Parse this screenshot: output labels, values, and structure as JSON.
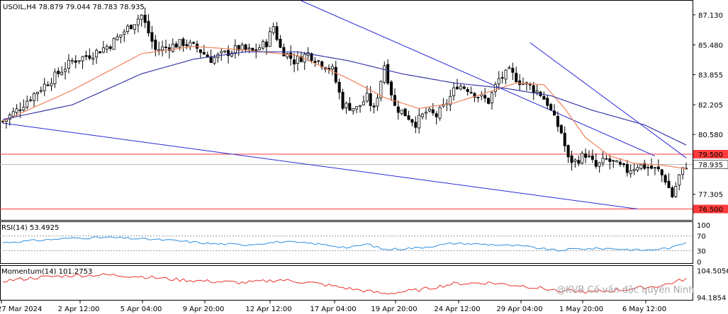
{
  "chart_data": [
    {
      "type": "candlestick",
      "title": "USOIL,H4  78.879 79.044 78.783 78.935",
      "y_ticks": [
        "87.130",
        "85.480",
        "83.855",
        "82.205",
        "80.580",
        "77.305"
      ],
      "ylim": [
        75.9,
        87.9
      ],
      "x_ticks": [
        "27 Mar 2024",
        "2 Apr 12:00",
        "5 Apr 04:00",
        "9 Apr 20:00",
        "12 Apr 12:00",
        "17 Apr 04:00",
        "19 Apr 20:00",
        "24 Apr 12:00",
        "29 Apr 04:00",
        "1 May 20:00",
        "6 May 12:00"
      ],
      "price_levels": [
        {
          "label": "79.500",
          "value": 79.5,
          "color": "#ff3b3b"
        },
        {
          "label": "76.500",
          "value": 76.5,
          "color": "#ff3b3b"
        }
      ],
      "current_price": {
        "label": "78.935",
        "value": 78.935
      },
      "close_points": [
        [
          0,
          81.3
        ],
        [
          4,
          81.9
        ],
        [
          9,
          82.8
        ],
        [
          14,
          83.6
        ],
        [
          20,
          84.6
        ],
        [
          26,
          85.0
        ],
        [
          31,
          85.5
        ],
        [
          36,
          86.4
        ],
        [
          40,
          87.1
        ],
        [
          44,
          85.2
        ],
        [
          48,
          85.4
        ],
        [
          52,
          85.6
        ],
        [
          56,
          85.3
        ],
        [
          60,
          84.7
        ],
        [
          64,
          85.0
        ],
        [
          68,
          85.3
        ],
        [
          72,
          85.1
        ],
        [
          76,
          85.6
        ],
        [
          78,
          86.5
        ],
        [
          80,
          85.3
        ],
        [
          84,
          84.6
        ],
        [
          88,
          85.0
        ],
        [
          91,
          84.6
        ],
        [
          95,
          84.1
        ],
        [
          98,
          82.2
        ],
        [
          102,
          82.0
        ],
        [
          105,
          82.6
        ],
        [
          107,
          81.9
        ],
        [
          110,
          84.4
        ],
        [
          113,
          82.1
        ],
        [
          116,
          81.7
        ],
        [
          119,
          81.2
        ],
        [
          122,
          81.8
        ],
        [
          125,
          81.6
        ],
        [
          128,
          82.3
        ],
        [
          131,
          83.3
        ],
        [
          134,
          83.1
        ],
        [
          137,
          82.7
        ],
        [
          140,
          82.4
        ],
        [
          143,
          83.6
        ],
        [
          146,
          84.0
        ],
        [
          149,
          83.5
        ],
        [
          152,
          83.2
        ],
        [
          155,
          82.8
        ],
        [
          157,
          82.3
        ],
        [
          159,
          81.4
        ],
        [
          161,
          80.7
        ],
        [
          163,
          79.2
        ],
        [
          165,
          79.1
        ],
        [
          168,
          79.5
        ],
        [
          171,
          78.8
        ],
        [
          174,
          79.2
        ],
        [
          177,
          78.9
        ],
        [
          180,
          78.6
        ],
        [
          183,
          78.9
        ],
        [
          186,
          78.8
        ],
        [
          189,
          78.6
        ],
        [
          191,
          78.1
        ],
        [
          193,
          77.2
        ],
        [
          195,
          78.3
        ],
        [
          197,
          78.9
        ]
      ],
      "candle_count": 198,
      "series": [
        {
          "name": "",
          "color": "#f2825a",
          "points": [
            [
              0,
              81.3
            ],
            [
              20,
              83.0
            ],
            [
              40,
              85.0
            ],
            [
              55,
              85.4
            ],
            [
              70,
              85.2
            ],
            [
              85,
              84.9
            ],
            [
              100,
              83.6
            ],
            [
              110,
              82.6
            ],
            [
              120,
              82.0
            ],
            [
              130,
              82.3
            ],
            [
              140,
              82.9
            ],
            [
              148,
              83.4
            ],
            [
              156,
              83.3
            ],
            [
              162,
              82.0
            ],
            [
              168,
              80.4
            ],
            [
              175,
              79.4
            ],
            [
              182,
              79.0
            ],
            [
              190,
              78.9
            ],
            [
              197,
              78.7
            ]
          ]
        },
        {
          "name": "",
          "color": "#3a3aa8",
          "points": [
            [
              0,
              81.4
            ],
            [
              20,
              82.2
            ],
            [
              40,
              83.9
            ],
            [
              55,
              84.7
            ],
            [
              70,
              85.1
            ],
            [
              85,
              85.1
            ],
            [
              100,
              84.6
            ],
            [
              115,
              83.9
            ],
            [
              130,
              83.4
            ],
            [
              145,
              83.1
            ],
            [
              158,
              82.7
            ],
            [
              170,
              81.9
            ],
            [
              185,
              81.1
            ],
            [
              197,
              80.0
            ]
          ]
        }
      ],
      "trend_lines": [
        {
          "color": "#2a2ad8",
          "from": [
            86,
            87.9
          ],
          "to": [
            188,
            79.4
          ]
        },
        {
          "color": "#2a2ad8",
          "from": [
            152,
            85.6
          ],
          "to": [
            197,
            79.3
          ]
        },
        {
          "color": "#2a2ad8",
          "from": [
            0,
            81.2
          ],
          "to": [
            183,
            76.5
          ]
        }
      ]
    },
    {
      "type": "line",
      "title": "RSI(14) 53.4925",
      "y_ticks": [
        "100",
        "70",
        "30",
        "0"
      ],
      "ylim": [
        0,
        100
      ],
      "levels": [
        70,
        30
      ],
      "series": [
        {
          "name": "",
          "color": "#2f8fe0",
          "points": [
            [
              0,
              52
            ],
            [
              10,
              58
            ],
            [
              20,
              64
            ],
            [
              30,
              66
            ],
            [
              40,
              62
            ],
            [
              50,
              57
            ],
            [
              60,
              49
            ],
            [
              70,
              46
            ],
            [
              80,
              54
            ],
            [
              90,
              49
            ],
            [
              100,
              38
            ],
            [
              105,
              48
            ],
            [
              110,
              33
            ],
            [
              120,
              38
            ],
            [
              130,
              50
            ],
            [
              140,
              47
            ],
            [
              150,
              42
            ],
            [
              160,
              30
            ],
            [
              165,
              35
            ],
            [
              175,
              36
            ],
            [
              185,
              31
            ],
            [
              193,
              38
            ],
            [
              197,
              53.5
            ]
          ]
        }
      ]
    },
    {
      "type": "line",
      "title": "Momentum(14) 101.2753",
      "y_ticks": [
        "104.5056",
        "94.1854"
      ],
      "ylim": [
        93.5,
        105.2
      ],
      "series": [
        {
          "name": "",
          "color": "#e8322e",
          "points": [
            [
              0,
              100.5
            ],
            [
              10,
              101.8
            ],
            [
              20,
              102.6
            ],
            [
              30,
              102.8
            ],
            [
              40,
              102.2
            ],
            [
              50,
              101.0
            ],
            [
              60,
              100.3
            ],
            [
              70,
              99.8
            ],
            [
              80,
              100.9
            ],
            [
              90,
              99.6
            ],
            [
              100,
              97.5
            ],
            [
              110,
              95.6
            ],
            [
              120,
              97.0
            ],
            [
              130,
              99.4
            ],
            [
              140,
              99.8
            ],
            [
              150,
              98.6
            ],
            [
              160,
              96.8
            ],
            [
              170,
              96.2
            ],
            [
              180,
              97.3
            ],
            [
              190,
              98.7
            ],
            [
              197,
              101.3
            ]
          ]
        }
      ]
    }
  ],
  "watermark": "@KVB Cố vấn độc quyền Ninh"
}
